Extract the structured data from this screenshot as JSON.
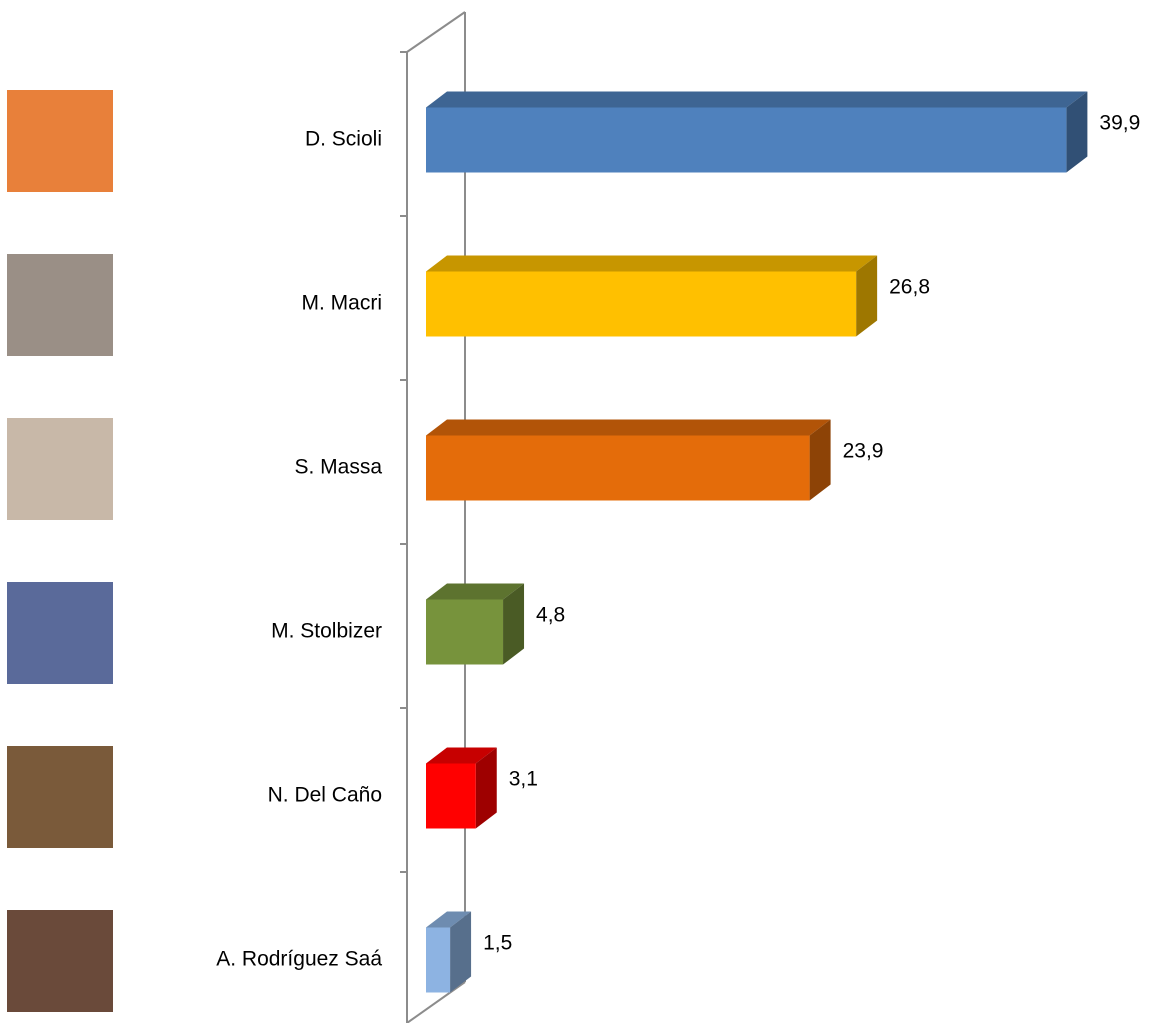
{
  "chart_data": {
    "type": "bar",
    "orientation": "horizontal",
    "categories": [
      "D. Scioli",
      "M. Macri",
      "S. Massa",
      "M. Stolbizer",
      "N. Del Caño",
      "A. Rodríguez Saá"
    ],
    "values": [
      39.9,
      26.8,
      23.9,
      4.8,
      3.1,
      1.5
    ],
    "value_labels": [
      "39,9",
      "26,8",
      "23,9",
      "4,8",
      "3,1",
      "1,5"
    ],
    "colors": [
      "#4f81bd",
      "#ffc000",
      "#e46c0a",
      "#77933c",
      "#ff0000",
      "#8db3e2"
    ],
    "xlim": [
      0,
      40
    ]
  }
}
